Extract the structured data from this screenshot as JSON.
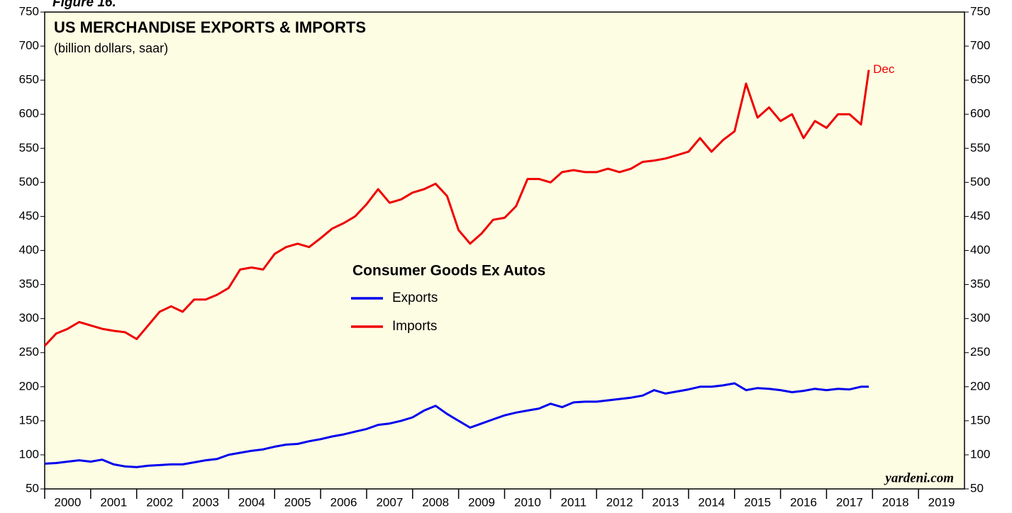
{
  "chart_data": {
    "type": "line",
    "figure_label": "Figure 16.",
    "title": "US MERCHANDISE EXPORTS & IMPORTS",
    "subtitle": "(billion dollars, saar)",
    "legend_title": "Consumer Goods Ex Autos",
    "annotation": "Dec",
    "source": "yardeni.com",
    "x": [
      2000,
      2000.25,
      2000.5,
      2000.75,
      2001,
      2001.25,
      2001.5,
      2001.75,
      2002,
      2002.25,
      2002.5,
      2002.75,
      2003,
      2003.25,
      2003.5,
      2003.75,
      2004,
      2004.25,
      2004.5,
      2004.75,
      2005,
      2005.25,
      2005.5,
      2005.75,
      2006,
      2006.25,
      2006.5,
      2006.75,
      2007,
      2007.25,
      2007.5,
      2007.75,
      2008,
      2008.25,
      2008.5,
      2008.75,
      2009,
      2009.25,
      2009.5,
      2009.75,
      2010,
      2010.25,
      2010.5,
      2010.75,
      2011,
      2011.25,
      2011.5,
      2011.75,
      2012,
      2012.25,
      2012.5,
      2012.75,
      2013,
      2013.25,
      2013.5,
      2013.75,
      2014,
      2014.25,
      2014.5,
      2014.75,
      2015,
      2015.25,
      2015.5,
      2015.75,
      2016,
      2016.25,
      2016.5,
      2016.75,
      2017,
      2017.25,
      2017.5,
      2017.75,
      2017.92
    ],
    "series": [
      {
        "name": "Exports",
        "color": "#0000ee",
        "values": [
          87,
          88,
          90,
          92,
          90,
          93,
          86,
          83,
          82,
          84,
          85,
          86,
          86,
          89,
          92,
          94,
          100,
          103,
          106,
          108,
          112,
          115,
          116,
          120,
          123,
          127,
          130,
          134,
          138,
          144,
          146,
          150,
          155,
          165,
          172,
          160,
          150,
          140,
          146,
          152,
          158,
          162,
          165,
          168,
          175,
          170,
          177,
          178,
          178,
          180,
          182,
          184,
          187,
          195,
          190,
          193,
          196,
          200,
          200,
          202,
          205,
          195,
          198,
          197,
          195,
          192,
          194,
          197,
          195,
          197,
          196,
          200,
          200
        ]
      },
      {
        "name": "Imports",
        "color": "#ee0000",
        "values": [
          260,
          278,
          285,
          295,
          290,
          285,
          282,
          280,
          270,
          290,
          310,
          318,
          310,
          328,
          328,
          335,
          345,
          372,
          375,
          372,
          395,
          405,
          410,
          405,
          418,
          432,
          440,
          450,
          468,
          490,
          470,
          475,
          485,
          490,
          498,
          480,
          430,
          410,
          425,
          445,
          448,
          465,
          505,
          505,
          500,
          515,
          518,
          515,
          515,
          520,
          515,
          520,
          530,
          532,
          535,
          540,
          545,
          565,
          545,
          562,
          575,
          645,
          595,
          610,
          590,
          600,
          565,
          590,
          580,
          600,
          600,
          585,
          665
        ]
      }
    ],
    "xlim": [
      2000,
      2020
    ],
    "xticks": [
      2000,
      2001,
      2002,
      2003,
      2004,
      2005,
      2006,
      2007,
      2008,
      2009,
      2010,
      2011,
      2012,
      2013,
      2014,
      2015,
      2016,
      2017,
      2018,
      2019
    ],
    "ylim": [
      50,
      750
    ],
    "yticks": [
      50,
      100,
      150,
      200,
      250,
      300,
      350,
      400,
      450,
      500,
      550,
      600,
      650,
      700,
      750
    ],
    "background": "#fdfde3"
  }
}
